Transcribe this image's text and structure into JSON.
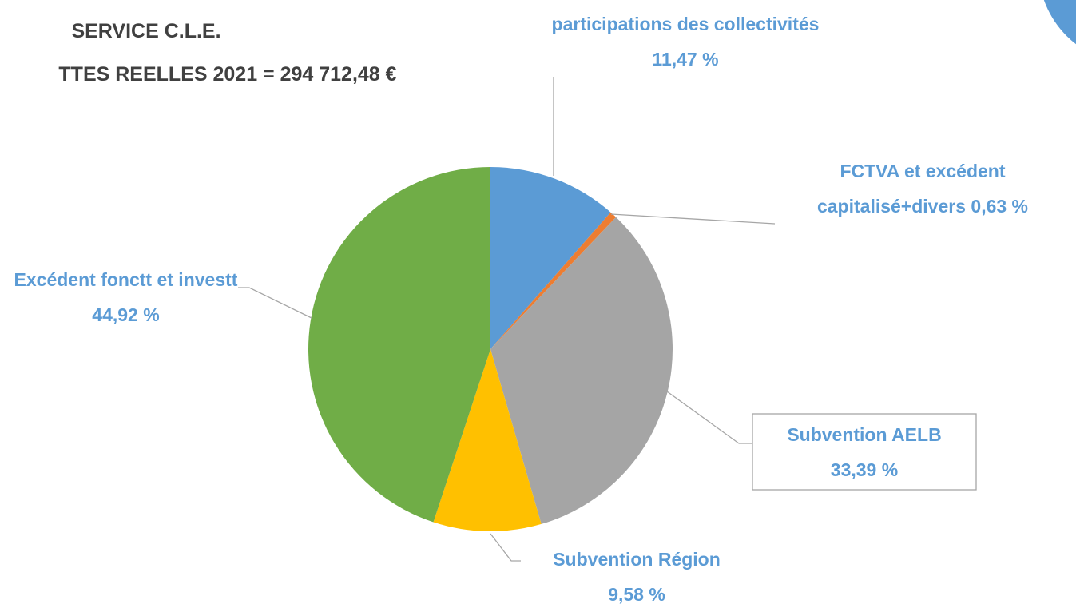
{
  "chart_data": {
    "type": "pie",
    "title": "SERVICE C.L.E.",
    "subtitle": "TTES REELLES 2021 = 294 712,48 €",
    "categories": [
      "participations des collectivités",
      "FCTVA et excédent capitalisé+divers",
      "Subvention AELB",
      "Subvention Région",
      "Excédent fonctt et investt"
    ],
    "values": [
      11.47,
      0.63,
      33.39,
      9.58,
      44.92
    ],
    "value_labels": [
      "11,47 %",
      "0,63 %",
      "33,39 %",
      "9,58 %",
      "44,92 %"
    ],
    "colors": [
      "#5b9bd5",
      "#ed7d31",
      "#a5a5a5",
      "#ffc000",
      "#70ad47"
    ]
  }
}
